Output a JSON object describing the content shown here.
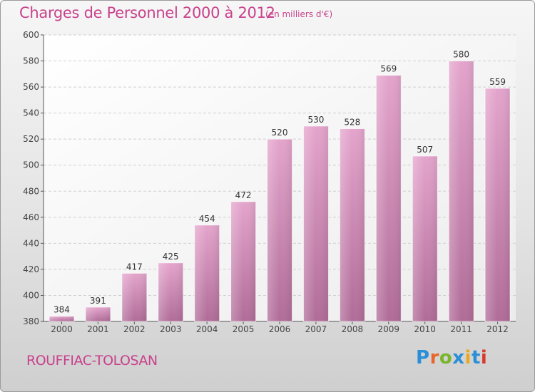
{
  "header": {
    "title": "Charges de Personnel 2000 à 2012",
    "subtitle": "(en milliers d'€)"
  },
  "footer": {
    "city": "ROUFFIAC-TOLOSAN",
    "logo_text": "Proxiti",
    "logo_colors": [
      "#2a8fd6",
      "#e8662a",
      "#79b52b",
      "#2a8fd6",
      "#e8a81f",
      "#2a8fd6",
      "#d8392e"
    ]
  },
  "chart_data": {
    "type": "bar",
    "categories": [
      "2000",
      "2001",
      "2002",
      "2003",
      "2004",
      "2005",
      "2006",
      "2007",
      "2008",
      "2009",
      "2010",
      "2011",
      "2012"
    ],
    "values": [
      384,
      391,
      417,
      425,
      454,
      472,
      520,
      530,
      528,
      569,
      507,
      580,
      559
    ],
    "data_labels": [
      "384",
      "391",
      "417",
      "425",
      "454",
      "472",
      "520",
      "530",
      "528",
      "569",
      "507",
      "580",
      "559"
    ],
    "yticks": [
      "380",
      "400",
      "420",
      "440",
      "460",
      "480",
      "500",
      "520",
      "540",
      "560",
      "580",
      "600"
    ],
    "ylim": [
      380,
      600
    ],
    "grid": true,
    "bar_color_top": "#e4a4cc",
    "bar_color_bottom": "#b06c98",
    "plot_background": "#ffffff"
  }
}
